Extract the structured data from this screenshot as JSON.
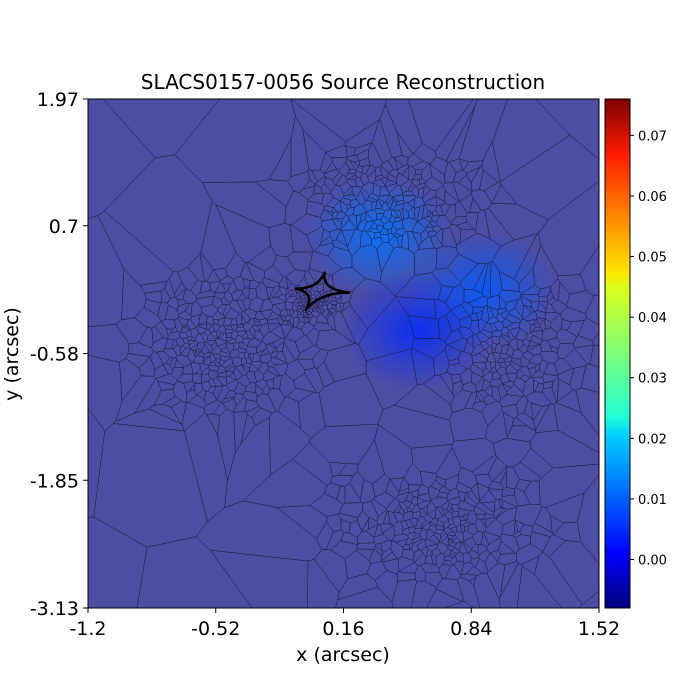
{
  "chart_data": {
    "type": "heatmap",
    "title": "SLACS0157-0056 Source Reconstruction",
    "xlabel": "x (arcsec)",
    "ylabel": "y (arcsec)",
    "xlim": [
      -1.2,
      1.52
    ],
    "ylim": [
      -3.13,
      1.97
    ],
    "x_ticks": [
      -1.2,
      -0.52,
      0.16,
      0.84,
      1.52
    ],
    "x_tick_labels": [
      "-1.2",
      "-0.52",
      "0.16",
      "0.84",
      "1.52"
    ],
    "y_ticks": [
      1.97,
      0.7,
      -0.58,
      -1.85,
      -3.13
    ],
    "y_tick_labels": [
      "1.97",
      "0.7",
      "-0.58",
      "-1.85",
      "-3.13"
    ],
    "colorbar": {
      "colormap": "jet",
      "range": [
        -0.008,
        0.076
      ],
      "ticks": [
        0.0,
        0.01,
        0.02,
        0.03,
        0.04,
        0.05,
        0.06,
        0.07
      ],
      "tick_labels": [
        "0.00",
        "0.01",
        "0.02",
        "0.03",
        "0.04",
        "0.05",
        "0.06",
        "0.07"
      ]
    },
    "background_value": 0.003,
    "brightness_peaks": [
      {
        "x": 0.35,
        "y": 0.6,
        "value": 0.012
      },
      {
        "x": 0.9,
        "y": 0.05,
        "value": 0.01
      },
      {
        "x": 0.55,
        "y": -0.35,
        "value": 0.006
      }
    ],
    "mesh": "voronoi",
    "caustic": {
      "type": "astroid",
      "center": [
        0.04,
        0.05
      ],
      "points": [
        [
          -0.1,
          0.07
        ],
        [
          0.06,
          0.23
        ],
        [
          0.19,
          0.03
        ],
        [
          -0.04,
          -0.14
        ]
      ]
    }
  }
}
